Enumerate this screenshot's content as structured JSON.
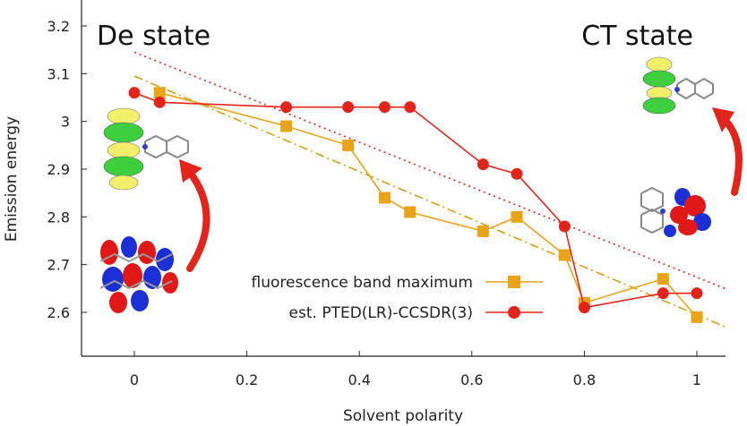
{
  "chart_data": {
    "type": "line",
    "title": "",
    "xlabel": "Solvent polarity",
    "ylabel": "Emission energy",
    "xlim": [
      -0.09,
      1.05
    ],
    "ylim": [
      2.54,
      3.24
    ],
    "xticks": [
      0,
      0.2,
      0.4,
      0.6,
      0.8,
      1
    ],
    "xtick_labels": [
      "0",
      "0.2",
      "0.4",
      "0.6",
      "0.8",
      "1"
    ],
    "yticks": [
      2.6,
      2.7,
      2.8,
      2.9,
      3.0,
      3.1,
      3.2
    ],
    "ytick_labels": [
      "2.6",
      "2.7",
      "2.8",
      "2.9",
      "3",
      "3.1",
      "3.2"
    ],
    "grid": false,
    "legend_position": "bottom-center",
    "series": [
      {
        "name": "fluorescence band maximum",
        "color": "#e8a317",
        "marker": "square",
        "x": [
          0.045,
          0.27,
          0.38,
          0.445,
          0.49,
          0.62,
          0.68,
          0.765,
          0.8,
          0.94,
          1.0
        ],
        "y": [
          3.06,
          2.99,
          2.95,
          2.84,
          2.81,
          2.77,
          2.8,
          2.72,
          2.62,
          2.67,
          2.59
        ]
      },
      {
        "name": "est. PTED(LR)-CCSDR(3)",
        "color": "#e3241b",
        "marker": "circle",
        "x": [
          0.0,
          0.045,
          0.27,
          0.38,
          0.445,
          0.49,
          0.62,
          0.68,
          0.765,
          0.8,
          0.94,
          1.0
        ],
        "y": [
          3.06,
          3.04,
          3.03,
          3.03,
          3.03,
          3.03,
          2.91,
          2.89,
          2.78,
          2.61,
          2.64,
          2.64
        ]
      }
    ],
    "fit_lines": [
      {
        "color": "#d4a017",
        "style": "dash-dot",
        "x": [
          0.0,
          1.05
        ],
        "y": [
          3.095,
          2.57
        ]
      },
      {
        "color": "#e3241b",
        "style": "dotted",
        "x": [
          0.0,
          1.05
        ],
        "y": [
          3.145,
          2.65
        ]
      }
    ],
    "annotations": [
      {
        "text": "De state",
        "anchor": "top-left"
      },
      {
        "text": "CT state",
        "anchor": "top-right"
      }
    ]
  }
}
